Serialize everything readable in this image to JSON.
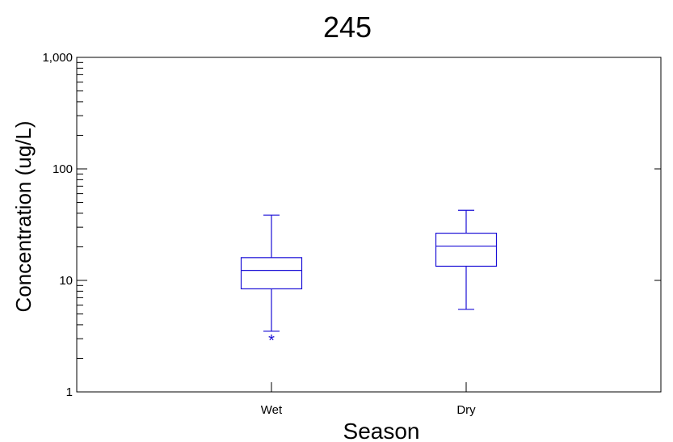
{
  "chart_data": {
    "type": "box",
    "title": "245",
    "xlabel": "Season",
    "ylabel": "Concentration (ug/L)",
    "yscale": "log",
    "ylim": [
      1,
      1000
    ],
    "yticks": [
      {
        "value": 1,
        "label": "1"
      },
      {
        "value": 10,
        "label": "10"
      },
      {
        "value": 100,
        "label": "100"
      },
      {
        "value": 1000,
        "label": "1,000"
      }
    ],
    "categories": [
      "Wet",
      "Dry"
    ],
    "boxes": [
      {
        "category": "Wet",
        "whisker_low": 3.5,
        "q1": 8.4,
        "median": 12.3,
        "q3": 16.0,
        "whisker_high": 38.5,
        "outliers": [
          3.0
        ]
      },
      {
        "category": "Dry",
        "whisker_low": 5.5,
        "q1": 13.4,
        "median": 20.3,
        "q3": 26.5,
        "whisker_high": 42.5,
        "outliers": []
      }
    ],
    "outlier_marker": "*",
    "box_color": "#1a0fd6",
    "grid": false,
    "legend": "none"
  }
}
